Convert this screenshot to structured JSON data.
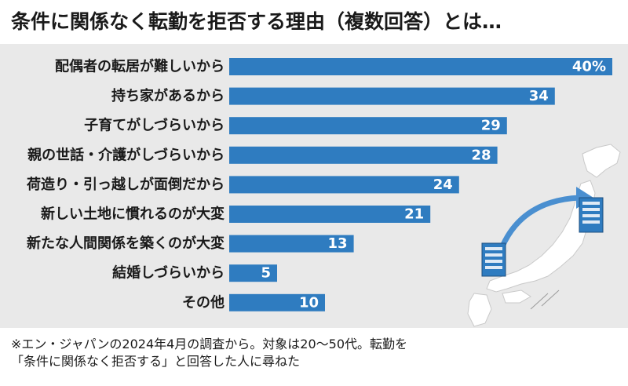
{
  "title": "条件に関係なく転勤を拒否する理由（複数回答）とは…",
  "note": "※エン・ジャパンの2024年4月の調査から。対象は20～50代。転勤を「条件に関係なく拒否する」と回答した人に尋ねた",
  "colors": {
    "bar": "#2f7cc0",
    "panel": "#e9e9e9",
    "map": "#ffffff"
  },
  "icons": [
    "building-icon",
    "japan-map-icon",
    "relocation-arrow-icon"
  ],
  "chart_data": {
    "type": "bar",
    "orientation": "horizontal",
    "categories": [
      "配偶者の転居が難しいから",
      "持ち家があるから",
      "子育てがしづらいから",
      "親の世話・介護がしづらいから",
      "荷造り・引っ越しが面倒だから",
      "新しい土地に慣れるのが大変",
      "新たな人間関係を築くのが大変",
      "結婚しづらいから",
      "その他"
    ],
    "values": [
      40,
      34,
      29,
      28,
      24,
      21,
      13,
      5,
      10
    ],
    "value_labels": [
      "40%",
      "34",
      "29",
      "28",
      "24",
      "21",
      "13",
      "5",
      "10"
    ],
    "xlim": [
      0,
      40
    ],
    "grid": false
  }
}
